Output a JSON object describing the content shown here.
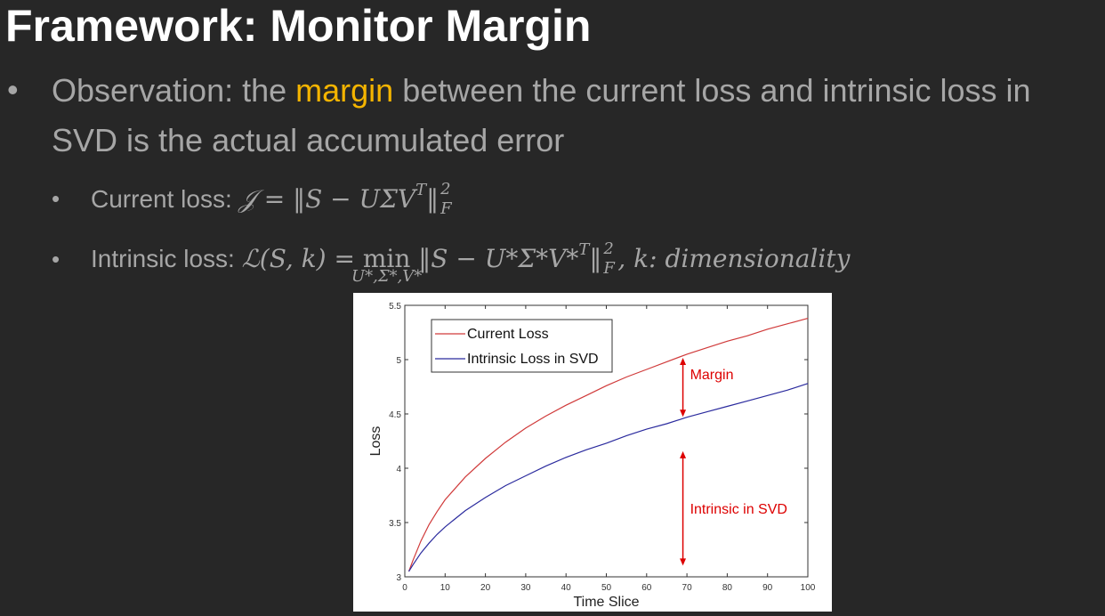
{
  "slide": {
    "title": "Framework: Monitor Margin",
    "bullet_symbol": "•",
    "observation": {
      "prefix": "Observation: the ",
      "highlight": "margin",
      "suffix": " between the current loss and intrinsic loss in SVD is the actual accumulated error"
    },
    "current_loss": {
      "label": "Current loss: ",
      "formula": {
        "lhs": "𝒥",
        "eq": " = ‖",
        "body": "S − UΣV",
        "sup_T": "T",
        "close": "‖",
        "sub_F": "F",
        "sup_2": "2"
      }
    },
    "intrinsic_loss": {
      "label": "Intrinsic loss: ",
      "formula": {
        "lhs": "ℒ(S, k)",
        "eq": " = ",
        "min": "min",
        "min_under": "U*,Σ*,V*",
        "body": "‖S − U*Σ*V*",
        "sup_T": "T",
        "close": "‖",
        "sub_F": "F",
        "sup_2": "2",
        "tail": ", k: dimensionality"
      }
    }
  },
  "colors": {
    "background": "#272727",
    "title": "#ffffff",
    "text": "#a6a6a6",
    "highlight": "#f4b400",
    "current_loss_line": "#d03a3a",
    "intrinsic_loss_line": "#2b2b9e",
    "annotation": "#dd0000"
  },
  "chart_data": {
    "type": "line",
    "title": "",
    "xlabel": "Time Slice",
    "ylabel": "Loss",
    "xlim": [
      0,
      100
    ],
    "ylim": [
      3,
      5.5
    ],
    "xticks": [
      0,
      10,
      20,
      30,
      40,
      50,
      60,
      70,
      80,
      90,
      100
    ],
    "yticks": [
      3,
      3.5,
      4,
      4.5,
      5,
      5.5
    ],
    "grid": false,
    "legend_position": "top-left",
    "series": [
      {
        "name": "Current Loss",
        "color": "#d03a3a",
        "x": [
          1,
          2,
          4,
          6,
          8,
          10,
          15,
          20,
          25,
          30,
          35,
          40,
          45,
          50,
          55,
          60,
          65,
          70,
          75,
          80,
          85,
          90,
          95,
          100
        ],
        "y": [
          3.05,
          3.15,
          3.33,
          3.48,
          3.6,
          3.71,
          3.92,
          4.09,
          4.24,
          4.37,
          4.48,
          4.58,
          4.67,
          4.76,
          4.84,
          4.91,
          4.98,
          5.05,
          5.11,
          5.17,
          5.22,
          5.28,
          5.33,
          5.38
        ]
      },
      {
        "name": "Intrinsic Loss in SVD",
        "color": "#2b2b9e",
        "x": [
          1,
          2,
          4,
          6,
          8,
          10,
          15,
          20,
          25,
          30,
          35,
          40,
          45,
          50,
          55,
          60,
          65,
          70,
          75,
          80,
          85,
          90,
          95,
          100
        ],
        "y": [
          3.05,
          3.11,
          3.22,
          3.31,
          3.39,
          3.46,
          3.61,
          3.73,
          3.84,
          3.93,
          4.02,
          4.1,
          4.17,
          4.23,
          4.3,
          4.36,
          4.41,
          4.47,
          4.52,
          4.57,
          4.62,
          4.67,
          4.72,
          4.78
        ]
      }
    ],
    "annotations": [
      {
        "text": "Margin",
        "x": 69,
        "y_from": 4.49,
        "y_to": 5.0
      },
      {
        "text": "Intrinsic in SVD",
        "x": 69,
        "y_from": 3.12,
        "y_to": 4.14
      }
    ]
  }
}
